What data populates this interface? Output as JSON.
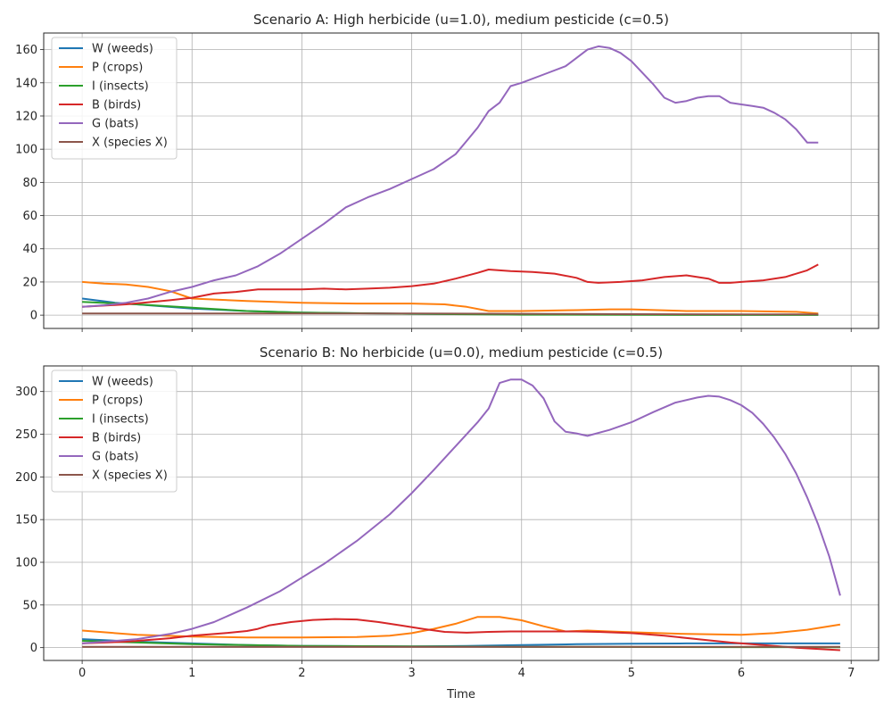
{
  "chart_data": [
    {
      "type": "line",
      "title": "Scenario A: High herbicide (u=1.0), medium pesticide (c=0.5)",
      "xlabel": "",
      "ylabel": "",
      "xlim": [
        -0.35,
        7.25
      ],
      "ylim": [
        -8,
        170
      ],
      "xticks": [
        0,
        1,
        2,
        3,
        4,
        5,
        6,
        7
      ],
      "xtick_labels_visible": false,
      "yticks": [
        0,
        20,
        40,
        60,
        80,
        100,
        120,
        140,
        160
      ],
      "grid": true,
      "legend": "top-left",
      "series": [
        {
          "name": "W (weeds)",
          "color": "#1f77b4",
          "x": [
            0,
            0.3,
            0.6,
            1.0,
            1.5,
            2.0,
            3.0,
            4.0,
            5.0,
            6.0,
            6.7
          ],
          "values": [
            10,
            7.5,
            6,
            4,
            2.5,
            1.5,
            0.8,
            0.5,
            0.4,
            0.3,
            0.3
          ]
        },
        {
          "name": "P (crops)",
          "color": "#ff7f0e",
          "x": [
            0,
            0.2,
            0.4,
            0.6,
            0.8,
            1.0,
            1.5,
            2.0,
            2.5,
            3.0,
            3.3,
            3.5,
            3.7,
            4.0,
            4.5,
            4.8,
            5.0,
            5.5,
            6.0,
            6.5,
            6.7
          ],
          "values": [
            20,
            19,
            18.5,
            17,
            14.5,
            10,
            8.5,
            7.5,
            7,
            7,
            6.5,
            5,
            2.5,
            2.5,
            3,
            3.5,
            3.5,
            2.5,
            2.5,
            2,
            1
          ]
        },
        {
          "name": "I (insects)",
          "color": "#2ca02c",
          "x": [
            0,
            0.5,
            1.0,
            1.5,
            2.0,
            3.0,
            4.0,
            5.0,
            6.0,
            6.7
          ],
          "values": [
            8,
            6.5,
            4.5,
            2.5,
            1.5,
            0.8,
            0.3,
            0.2,
            0.1,
            0.1
          ]
        },
        {
          "name": "B (birds)",
          "color": "#d62728",
          "x": [
            0,
            0.4,
            0.8,
            1.0,
            1.2,
            1.4,
            1.6,
            1.8,
            2.0,
            2.2,
            2.4,
            2.6,
            2.8,
            3.0,
            3.2,
            3.4,
            3.6,
            3.7,
            3.8,
            3.9,
            4.1,
            4.3,
            4.5,
            4.6,
            4.7,
            4.9,
            5.1,
            5.3,
            5.5,
            5.7,
            5.8,
            5.9,
            6.0,
            6.2,
            6.4,
            6.6,
            6.7
          ],
          "values": [
            5,
            6.5,
            9,
            10.5,
            13,
            14,
            15.5,
            15.5,
            15.5,
            16,
            15.5,
            16,
            16.5,
            17.5,
            19,
            22,
            25.5,
            27.5,
            27,
            26.5,
            26,
            25,
            22.5,
            20,
            19.5,
            20,
            21,
            23,
            24,
            22,
            19.5,
            19.5,
            20,
            21,
            23,
            27,
            30.5
          ]
        },
        {
          "name": "G (bats)",
          "color": "#9467bd",
          "x": [
            0,
            0.2,
            0.4,
            0.6,
            0.8,
            1.0,
            1.2,
            1.4,
            1.6,
            1.8,
            2.0,
            2.2,
            2.4,
            2.6,
            2.8,
            3.0,
            3.2,
            3.4,
            3.5,
            3.6,
            3.7,
            3.8,
            3.9,
            4.0,
            4.2,
            4.4,
            4.5,
            4.6,
            4.7,
            4.8,
            4.9,
            5.0,
            5.1,
            5.2,
            5.3,
            5.4,
            5.5,
            5.6,
            5.7,
            5.8,
            5.9,
            6.0,
            6.1,
            6.2,
            6.3,
            6.4,
            6.5,
            6.6,
            6.7
          ],
          "values": [
            5,
            6,
            7.5,
            10,
            14,
            17,
            21,
            24,
            29.5,
            37,
            46,
            55,
            65,
            71,
            76,
            82,
            88,
            97,
            105,
            113,
            123,
            128,
            138,
            140,
            145,
            150,
            155,
            160,
            162,
            161,
            158,
            153,
            146,
            139,
            131,
            128,
            129,
            131,
            132,
            132,
            128,
            127,
            126,
            125,
            122,
            118,
            112,
            104,
            104
          ]
        },
        {
          "name": "X (species X)",
          "color": "#8c564b",
          "x": [
            0,
            1,
            2,
            3,
            4,
            5,
            6,
            6.7
          ],
          "values": [
            1,
            1,
            1,
            1,
            0.8,
            0.6,
            0.5,
            0.5
          ]
        }
      ]
    },
    {
      "type": "line",
      "title": "Scenario B: No herbicide (u=0.0), medium pesticide (c=0.5)",
      "xlabel": "Time",
      "ylabel": "",
      "xlim": [
        -0.35,
        7.25
      ],
      "ylim": [
        -15,
        330
      ],
      "xticks": [
        0,
        1,
        2,
        3,
        4,
        5,
        6,
        7
      ],
      "xtick_labels_visible": true,
      "yticks": [
        0,
        50,
        100,
        150,
        200,
        250,
        300
      ],
      "grid": true,
      "legend": "top-left",
      "series": [
        {
          "name": "W (weeds)",
          "color": "#1f77b4",
          "x": [
            0,
            0.5,
            1.0,
            1.5,
            2.0,
            3.0,
            3.5,
            4.0,
            4.5,
            5.0,
            5.5,
            6.0,
            6.5,
            6.9
          ],
          "values": [
            10,
            7,
            5,
            3,
            2,
            1.5,
            2,
            3,
            4,
            4.5,
            5,
            5,
            5,
            5
          ]
        },
        {
          "name": "P (crops)",
          "color": "#ff7f0e",
          "x": [
            0,
            0.2,
            0.5,
            1.0,
            1.5,
            2.0,
            2.5,
            2.8,
            3.0,
            3.2,
            3.4,
            3.6,
            3.8,
            4.0,
            4.2,
            4.4,
            4.6,
            4.8,
            5.0,
            5.5,
            6.0,
            6.3,
            6.6,
            6.9
          ],
          "values": [
            20,
            18,
            15,
            13,
            12,
            12,
            12.5,
            14,
            17,
            22,
            28,
            36,
            36,
            32,
            25,
            19,
            20,
            19,
            18,
            16,
            15,
            17,
            21,
            27
          ]
        },
        {
          "name": "I (insects)",
          "color": "#2ca02c",
          "x": [
            0,
            0.5,
            1.0,
            1.5,
            2.0,
            3.0,
            4.0,
            5.0,
            6.0,
            6.9
          ],
          "values": [
            8,
            6,
            4,
            3,
            2,
            1.5,
            1,
            0.8,
            0.6,
            0.5
          ]
        },
        {
          "name": "B (birds)",
          "color": "#d62728",
          "x": [
            0,
            0.4,
            0.8,
            1.0,
            1.3,
            1.5,
            1.6,
            1.7,
            1.9,
            2.1,
            2.3,
            2.5,
            2.7,
            2.9,
            3.1,
            3.3,
            3.5,
            3.7,
            3.9,
            4.1,
            4.3,
            4.5,
            4.7,
            5.0,
            5.3,
            5.6,
            5.9,
            6.2,
            6.5,
            6.9
          ],
          "values": [
            5,
            7,
            11,
            14,
            17,
            19.5,
            22,
            26,
            30,
            32.5,
            33.5,
            33,
            30,
            26,
            22,
            18.5,
            17.5,
            18.5,
            19,
            19,
            19,
            19,
            18.5,
            17,
            14,
            10,
            6,
            3,
            0,
            -3
          ]
        },
        {
          "name": "G (bats)",
          "color": "#9467bd",
          "x": [
            0,
            0.2,
            0.5,
            0.8,
            1.0,
            1.2,
            1.5,
            1.8,
            2.0,
            2.2,
            2.5,
            2.8,
            3.0,
            3.2,
            3.4,
            3.6,
            3.7,
            3.8,
            3.9,
            4.0,
            4.1,
            4.2,
            4.3,
            4.4,
            4.5,
            4.6,
            4.8,
            5.0,
            5.2,
            5.4,
            5.6,
            5.7,
            5.8,
            5.9,
            6.0,
            6.1,
            6.2,
            6.3,
            6.4,
            6.5,
            6.6,
            6.7,
            6.8,
            6.9
          ],
          "values": [
            5,
            7,
            10,
            16,
            22,
            30,
            47,
            66,
            82,
            98,
            125,
            156,
            181,
            208,
            236,
            264,
            280,
            310,
            314,
            314,
            307,
            292,
            265,
            253,
            251,
            248,
            255,
            264,
            276,
            287,
            293,
            295,
            294,
            290,
            284,
            275,
            262,
            246,
            227,
            204,
            176,
            144,
            107,
            61
          ]
        },
        {
          "name": "X (species X)",
          "color": "#8c564b",
          "x": [
            0,
            1,
            2,
            3,
            4,
            5,
            6,
            6.9
          ],
          "values": [
            1,
            1,
            1,
            1,
            1,
            1,
            1,
            1
          ]
        }
      ]
    }
  ]
}
